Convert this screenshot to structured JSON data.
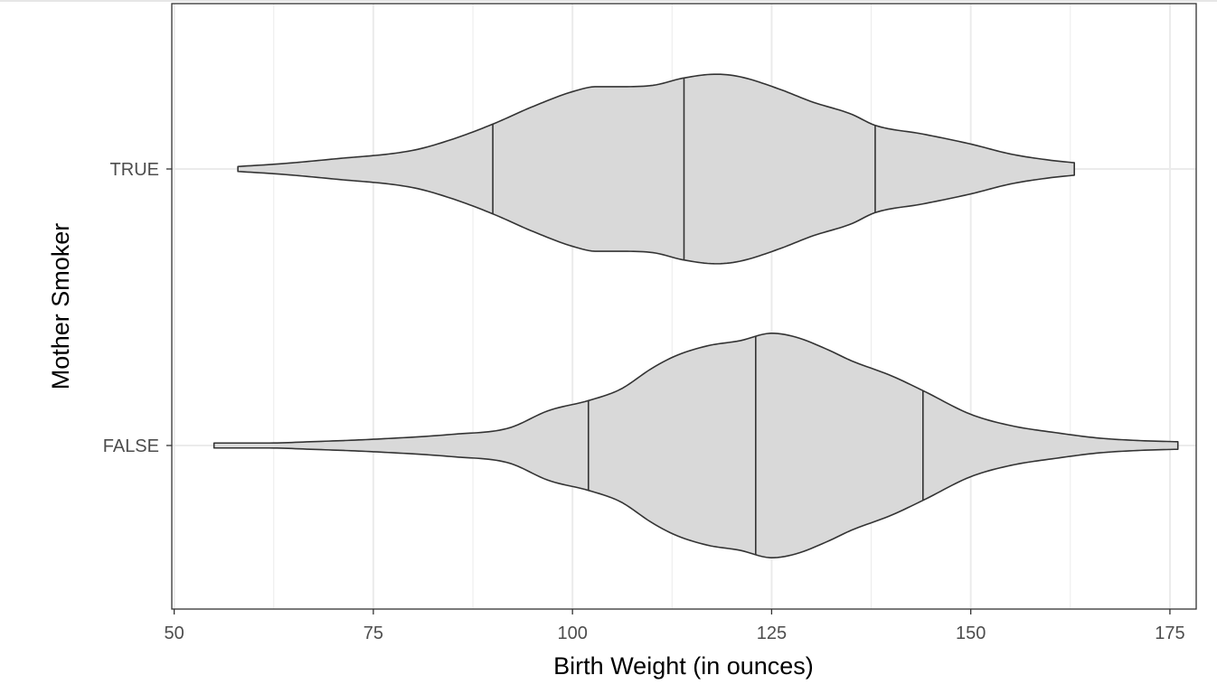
{
  "chart_data": {
    "type": "violin",
    "orientation": "horizontal",
    "xlabel": "Birth Weight (in ounces)",
    "ylabel": "Mother Smoker",
    "xlim": [
      49.7,
      178.3
    ],
    "x_ticks": [
      50,
      75,
      100,
      125,
      150,
      175
    ],
    "x_tick_labels": [
      "50",
      "75",
      "100",
      "125",
      "150",
      "175"
    ],
    "categories": [
      "TRUE",
      "FALSE"
    ],
    "grid": true,
    "legend": "none",
    "colors": {
      "fill": "#d9d9d9",
      "outline": "#333333",
      "grid": "#ebebeb",
      "panel_border": "#333333"
    },
    "series": [
      {
        "category": "TRUE",
        "min": 58,
        "max": 163,
        "quantiles": [
          90,
          114,
          138
        ],
        "density_profile": [
          [
            58,
            0.02
          ],
          [
            63,
            0.04
          ],
          [
            70,
            0.08
          ],
          [
            80,
            0.15
          ],
          [
            85,
            0.24
          ],
          [
            90,
            0.36
          ],
          [
            95,
            0.5
          ],
          [
            100,
            0.62
          ],
          [
            103,
            0.66
          ],
          [
            106,
            0.66
          ],
          [
            110,
            0.67
          ],
          [
            114,
            0.73
          ],
          [
            118,
            0.76
          ],
          [
            121,
            0.74
          ],
          [
            126,
            0.64
          ],
          [
            130,
            0.54
          ],
          [
            135,
            0.44
          ],
          [
            138,
            0.35
          ],
          [
            144,
            0.28
          ],
          [
            150,
            0.2
          ],
          [
            155,
            0.12
          ],
          [
            160,
            0.07
          ],
          [
            163,
            0.05
          ]
        ]
      },
      {
        "category": "FALSE",
        "min": 55,
        "max": 176,
        "quantiles": [
          102,
          123,
          144
        ],
        "density_profile": [
          [
            55,
            0.02
          ],
          [
            62,
            0.02
          ],
          [
            67,
            0.03
          ],
          [
            75,
            0.05
          ],
          [
            85,
            0.09
          ],
          [
            92,
            0.14
          ],
          [
            97,
            0.28
          ],
          [
            102,
            0.36
          ],
          [
            106,
            0.45
          ],
          [
            110,
            0.62
          ],
          [
            113,
            0.72
          ],
          [
            117,
            0.8
          ],
          [
            121,
            0.84
          ],
          [
            125,
            0.9
          ],
          [
            128,
            0.87
          ],
          [
            132,
            0.77
          ],
          [
            135,
            0.68
          ],
          [
            140,
            0.56
          ],
          [
            144,
            0.44
          ],
          [
            150,
            0.25
          ],
          [
            155,
            0.16
          ],
          [
            161,
            0.1
          ],
          [
            166,
            0.06
          ],
          [
            171,
            0.04
          ],
          [
            176,
            0.03
          ]
        ]
      }
    ]
  }
}
